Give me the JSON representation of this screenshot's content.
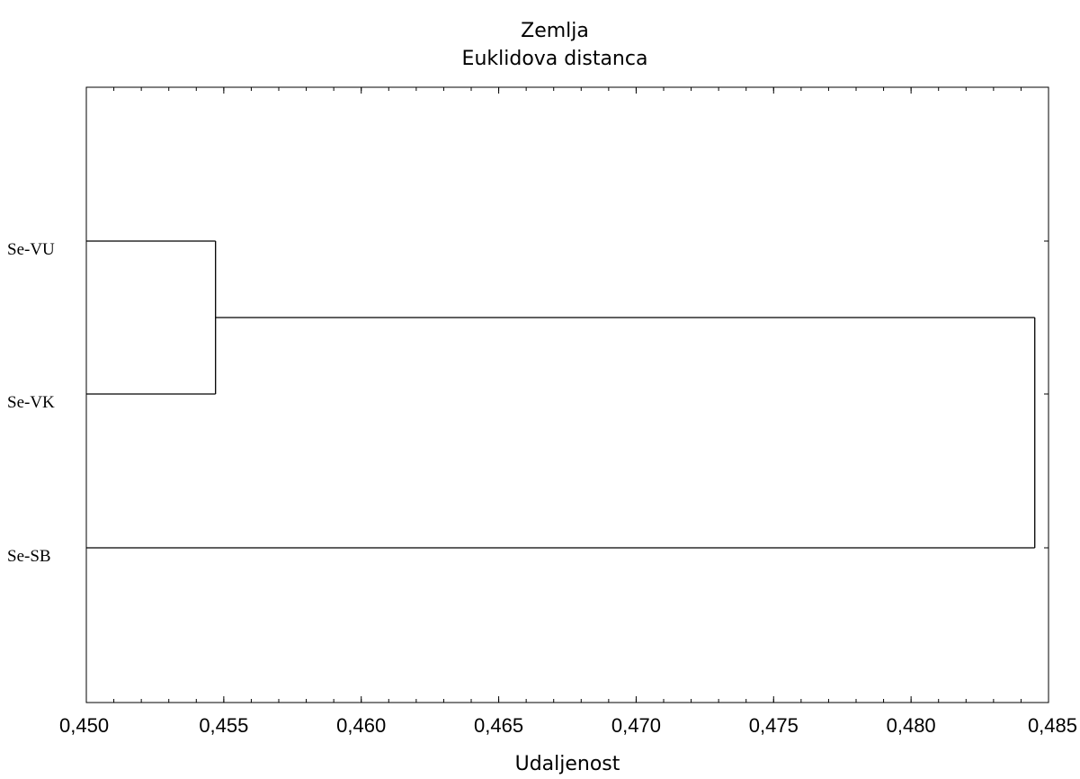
{
  "chart_data": {
    "type": "dendrogram",
    "title": "Zemlja",
    "subtitle": "Euklidova distanca",
    "xlabel": "Udaljenost",
    "xlim": [
      0.45,
      0.485
    ],
    "x_ticks": [
      0.45,
      0.455,
      0.46,
      0.465,
      0.47,
      0.475,
      0.48,
      0.485
    ],
    "x_tick_labels": [
      "0,450",
      "0,455",
      "0,460",
      "0,465",
      "0,470",
      "0,475",
      "0,480",
      "0,485"
    ],
    "x_minor_step": 0.001,
    "leaves": [
      "Se-VU",
      "Se-VK",
      "Se-SB"
    ],
    "merges": [
      {
        "left": "Se-VU",
        "right": "Se-VK",
        "distance": 0.4547
      },
      {
        "left": "cluster(Se-VU, Se-VK)",
        "right": "Se-SB",
        "distance": 0.4845
      }
    ],
    "line_color": "#000000",
    "grid": false,
    "legend": "none"
  }
}
